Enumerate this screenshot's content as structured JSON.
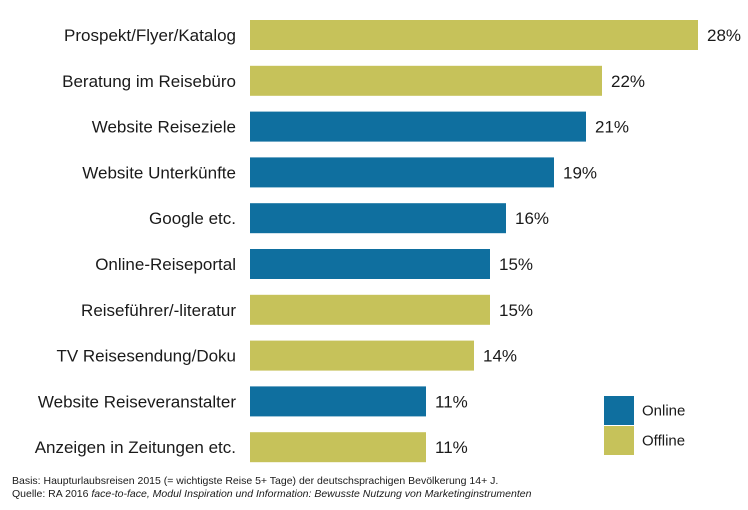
{
  "chart_data": {
    "type": "bar",
    "orientation": "horizontal",
    "categories": [
      "Prospekt/Flyer/Katalog",
      "Beratung im Reisebüro",
      "Website Reiseziele",
      "Website Unterkünfte",
      "Google etc.",
      "Online-Reiseportal",
      "Reiseführer/-literatur",
      "TV Reisesendung/Doku",
      "Website Reiseveranstalter",
      "Anzeigen in Zeitungen etc."
    ],
    "values": [
      28,
      22,
      21,
      19,
      16,
      15,
      15,
      14,
      11,
      11
    ],
    "value_labels": [
      "28%",
      "22%",
      "21%",
      "19%",
      "16%",
      "15%",
      "15%",
      "14%",
      "11%",
      "11%"
    ],
    "groups": [
      "Offline",
      "Offline",
      "Online",
      "Online",
      "Online",
      "Online",
      "Offline",
      "Offline",
      "Online",
      "Offline"
    ],
    "legend": [
      {
        "name": "Online",
        "color": "#0f6f9f"
      },
      {
        "name": "Offline",
        "color": "#c6c25a"
      }
    ],
    "xlim": [
      0,
      28
    ],
    "unit": "%",
    "grid": false,
    "legend_position": "bottom-right"
  },
  "footnote": {
    "basis": "Basis: Haupturlaubsreisen 2015 (= wichtigste Reise 5+ Tage) der deutschsprachigen Bevölkerung 14+ J.",
    "source_prefix": "Quelle: RA 2016 ",
    "source_italic": "face-to-face, Modul Inspiration und Information: Bewusste Nutzung von Marketinginstrumenten"
  }
}
